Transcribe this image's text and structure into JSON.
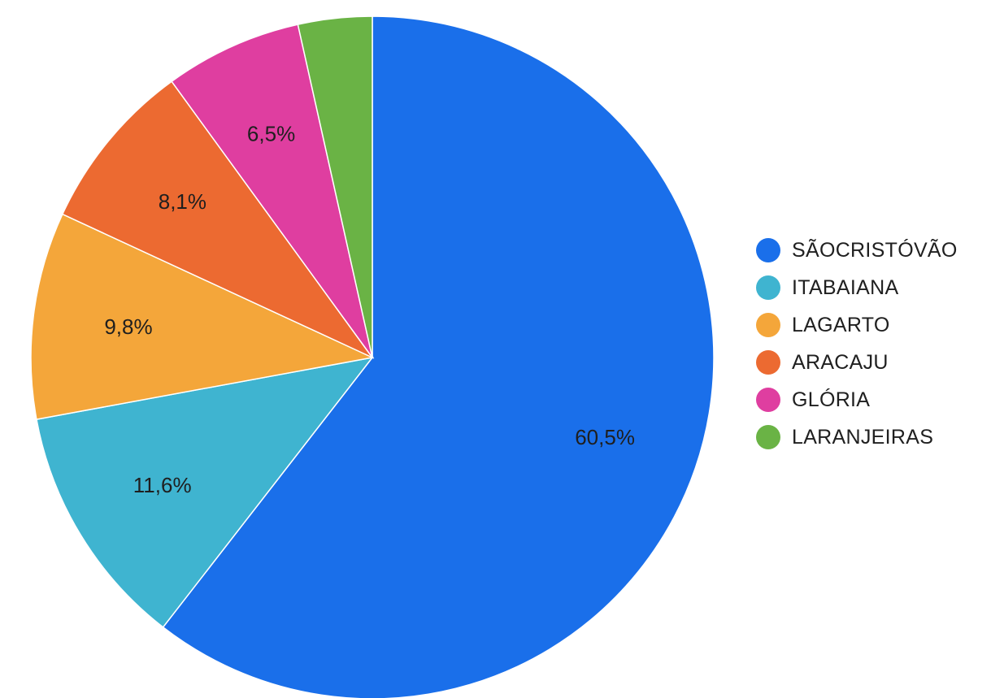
{
  "chart_data": {
    "type": "pie",
    "categories": [
      "SÃOCRISTÓVÃO",
      "ITABAIANA",
      "LAGARTO",
      "ARACAJU",
      "GLÓRIA",
      "LARANJEIRAS"
    ],
    "values": [
      60.5,
      11.6,
      9.8,
      8.1,
      6.5,
      3.5
    ],
    "data_labels": [
      "60,5%",
      "11,6%",
      "9,8%",
      "8,1%",
      "6,5%",
      ""
    ],
    "colors": [
      "#1a6fea",
      "#3fb4d0",
      "#f4a63a",
      "#ec6a31",
      "#df3ea0",
      "#6ab345"
    ],
    "title": "",
    "legend_position": "right"
  }
}
